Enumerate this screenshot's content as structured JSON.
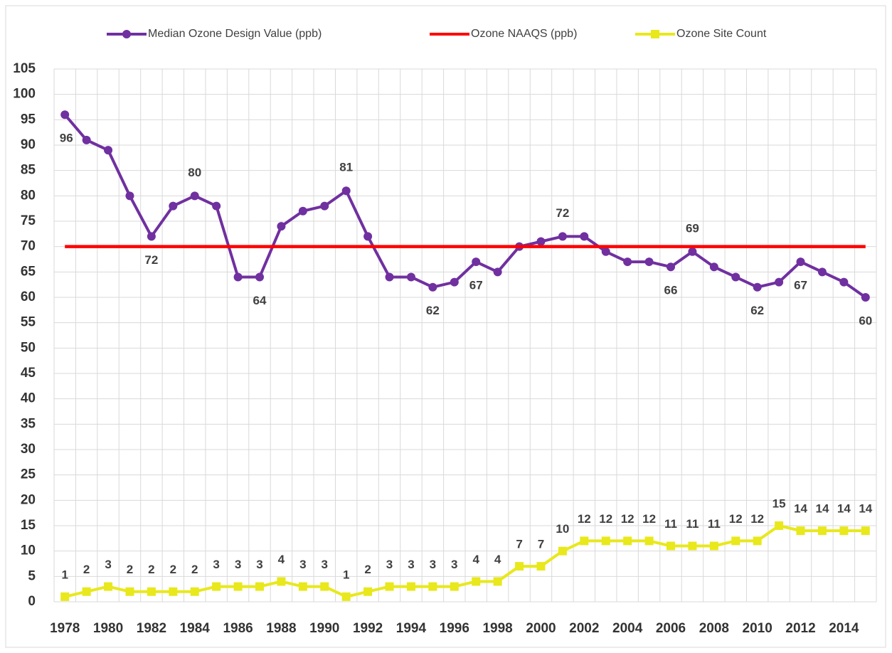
{
  "chart_data": {
    "type": "line",
    "categories": [
      "1978",
      null,
      "1980",
      null,
      "1982",
      null,
      "1984",
      null,
      "1986",
      null,
      "1988",
      null,
      "1990",
      null,
      "1992",
      null,
      "1994",
      null,
      "1996",
      null,
      "1998",
      null,
      "2000",
      null,
      "2002",
      null,
      "2004",
      null,
      "2006",
      null,
      "2008",
      null,
      "2010",
      null,
      "2012",
      null,
      "2014",
      null
    ],
    "series": [
      {
        "name": "Median Ozone Design Value (ppb)",
        "color": "#7030a0",
        "marker": "circle",
        "values": [
          96,
          91,
          89,
          80,
          72,
          78,
          80,
          78,
          64,
          64,
          74,
          77,
          78,
          81,
          72,
          64,
          64,
          62,
          63,
          67,
          65,
          70,
          71,
          72,
          72,
          69,
          67,
          67,
          66,
          69,
          66,
          64,
          62,
          63,
          67,
          65,
          63,
          60
        ],
        "value_labels": [
          "96",
          null,
          null,
          null,
          "72",
          null,
          "80",
          null,
          null,
          "64",
          null,
          null,
          null,
          "81",
          null,
          null,
          null,
          "62",
          null,
          "67",
          null,
          null,
          null,
          "72",
          null,
          null,
          null,
          null,
          "66",
          "69",
          null,
          null,
          "62",
          null,
          "67",
          null,
          null,
          "60"
        ]
      },
      {
        "name": "Ozone NAAQS (ppb)",
        "color": "#ff0000",
        "marker": "none",
        "values": [
          70,
          70,
          70,
          70,
          70,
          70,
          70,
          70,
          70,
          70,
          70,
          70,
          70,
          70,
          70,
          70,
          70,
          70,
          70,
          70,
          70,
          70,
          70,
          70,
          70,
          70,
          70,
          70,
          70,
          70,
          70,
          70,
          70,
          70,
          70,
          70,
          70,
          70
        ]
      },
      {
        "name": "Ozone Site Count",
        "color": "#e8e81c",
        "marker": "square",
        "values": [
          1,
          2,
          3,
          2,
          2,
          2,
          2,
          3,
          3,
          3,
          4,
          3,
          3,
          1,
          2,
          3,
          3,
          3,
          3,
          4,
          4,
          7,
          7,
          10,
          12,
          12,
          12,
          12,
          11,
          11,
          11,
          12,
          12,
          15,
          14,
          14,
          14,
          14
        ],
        "value_labels": [
          "1",
          "2",
          "3",
          "2",
          "2",
          "2",
          "2",
          "3",
          "3",
          "3",
          "4",
          "3",
          "3",
          "1",
          "2",
          "3",
          "3",
          "3",
          "3",
          "4",
          "4",
          "7",
          "7",
          "10",
          "12",
          "12",
          "12",
          "12",
          "11",
          "11",
          "11",
          "12",
          "12",
          "15",
          "14",
          "14",
          "14",
          "14"
        ]
      }
    ],
    "ylim": [
      0,
      105
    ],
    "yticks": [
      0,
      5,
      10,
      15,
      20,
      25,
      30,
      35,
      40,
      45,
      50,
      55,
      60,
      65,
      70,
      75,
      80,
      85,
      90,
      95,
      100,
      105
    ],
    "grid": true,
    "legend": "top"
  }
}
